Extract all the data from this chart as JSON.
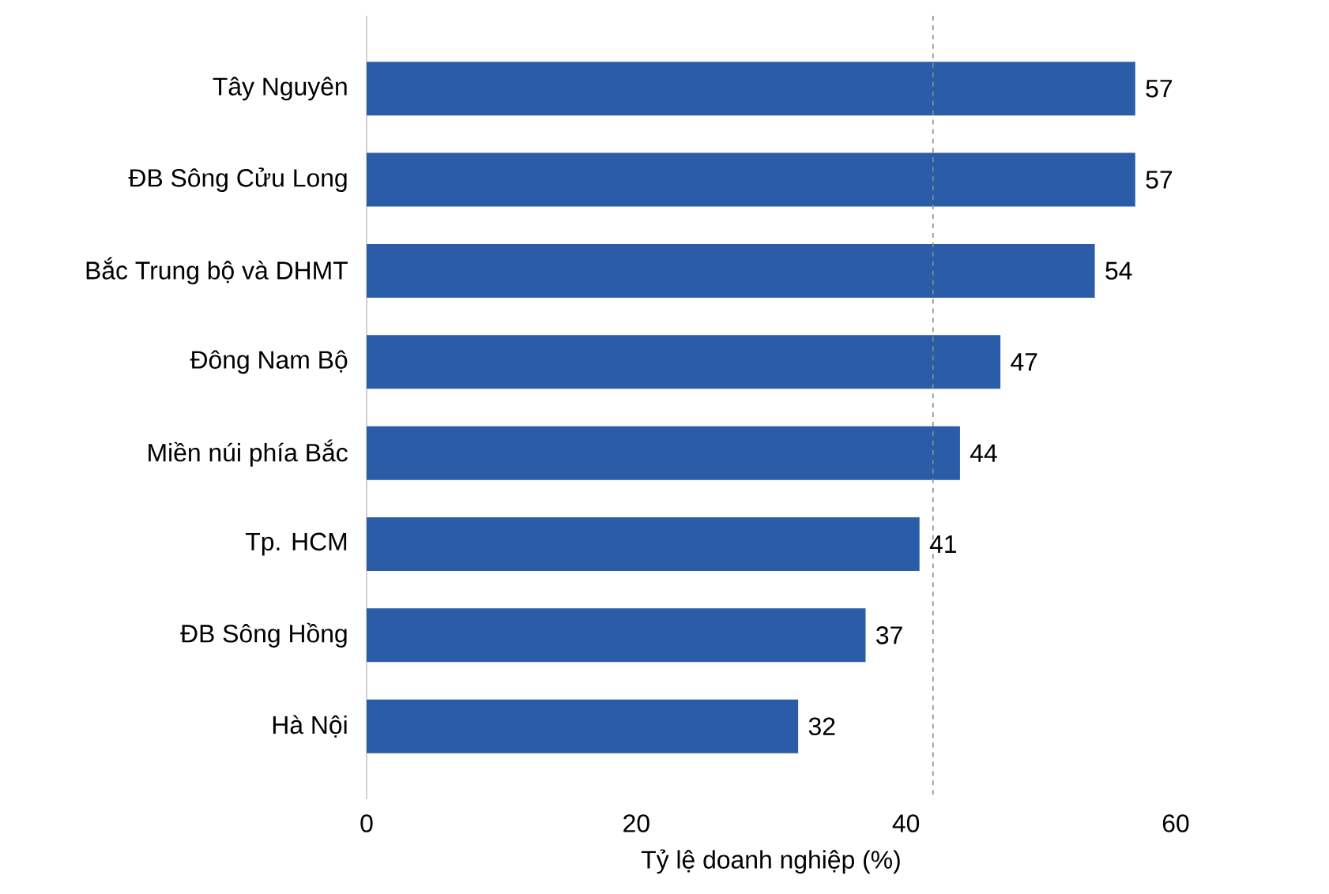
{
  "chart_data": {
    "type": "bar",
    "orientation": "horizontal",
    "xlabel": "Tỷ lệ doanh nghiệp (%)",
    "categories": [
      "Tây Nguyên",
      "ĐB Sông Cửu Long",
      "Bắc Trung bộ và DHMT",
      "Đông Nam Bộ",
      "Miền núi phía Bắc",
      "Tp. HCM",
      "ĐB Sông Hồng",
      "Hà Nội"
    ],
    "values": [
      57,
      57,
      54,
      47,
      44,
      41,
      37,
      32
    ],
    "color": "#2b5ca8",
    "data_labels": true,
    "xlim": [
      0,
      60
    ],
    "xticks": [
      0,
      20,
      40,
      60
    ],
    "ref_lines": [
      {
        "axis": "x",
        "value": 42,
        "color": "#8c8c8c",
        "line_style": "dashed"
      }
    ]
  }
}
